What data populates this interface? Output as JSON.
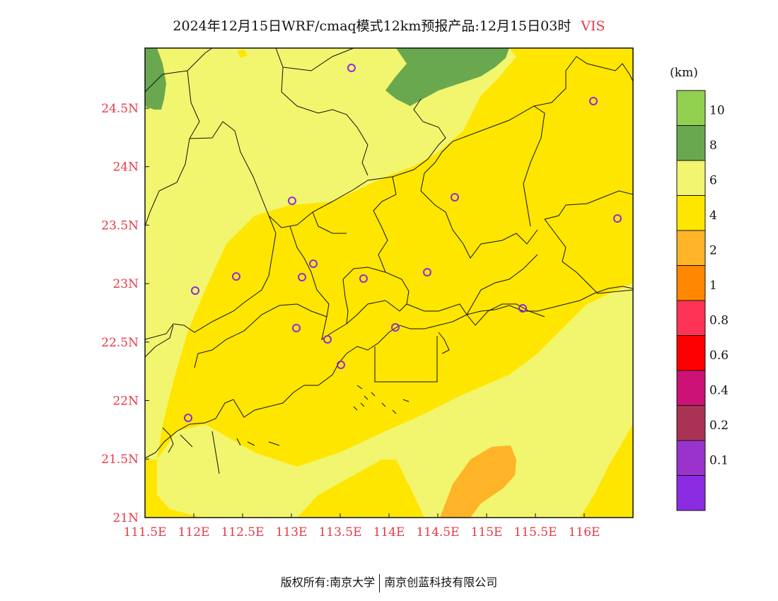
{
  "title": {
    "main": "2024年12月15日WRF/cmaq模式12km预报产品:12月15日03时",
    "variable": "VIS"
  },
  "map": {
    "x_ticks": [
      "111.5E",
      "112E",
      "112.5E",
      "113E",
      "113.5E",
      "114E",
      "114.5E",
      "115E",
      "115.5E",
      "116E"
    ],
    "y_ticks": [
      "24.5N",
      "24N",
      "23.5N",
      "23N",
      "22.5N",
      "22N",
      "21.5N",
      "21N"
    ]
  },
  "colorbar": {
    "unit": "(km)",
    "labels": [
      "10",
      "8",
      "6",
      "4",
      "2",
      "1",
      "0.8",
      "0.6",
      "0.4",
      "0.2",
      "0.1"
    ],
    "colors": [
      "#92d050",
      "#6aa84f",
      "#f2f56e",
      "#ffe600",
      "#ffb327",
      "#ff8800",
      "#ff3355",
      "#ff0000",
      "#cc1177",
      "#aa3355",
      "#9933cc",
      "#8b2be2"
    ]
  },
  "footer": {
    "left": "版权所有:南京大学",
    "right": "南京创蓝科技有限公司"
  }
}
